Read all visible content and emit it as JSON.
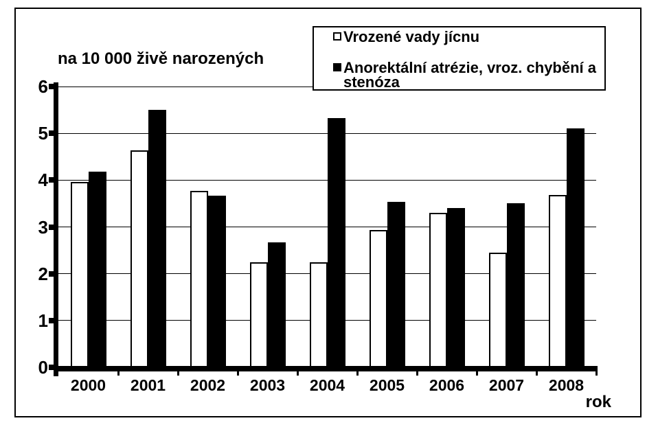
{
  "chart_data": {
    "type": "bar",
    "title": "",
    "unit_label": "na 10 000 živě narozených",
    "xlabel": "rok",
    "ylabel": "",
    "ylim": [
      0,
      6
    ],
    "ytick_step": 1,
    "grid": true,
    "legend_position": "top-right",
    "categories": [
      "2000",
      "2001",
      "2002",
      "2003",
      "2004",
      "2005",
      "2006",
      "2007",
      "2008"
    ],
    "series": [
      {
        "name": "Vrozené vady jícnu",
        "marker": "white-square",
        "color": "#ffffff",
        "values": [
          3.96,
          4.63,
          3.77,
          2.25,
          2.25,
          2.94,
          3.3,
          2.45,
          3.68
        ]
      },
      {
        "name": "Anorektální atrézie, vroz. chybění a stenóza",
        "marker": "black-square",
        "color": "#000000",
        "values": [
          4.18,
          5.5,
          3.67,
          2.67,
          5.32,
          3.53,
          3.4,
          3.5,
          5.1
        ]
      }
    ]
  },
  "colors": {
    "background": "#ffffff",
    "axis": "#000000",
    "grid": "#000000",
    "bar_outline": "#000000",
    "bar_series_1": "#ffffff",
    "bar_series_2": "#000000"
  }
}
